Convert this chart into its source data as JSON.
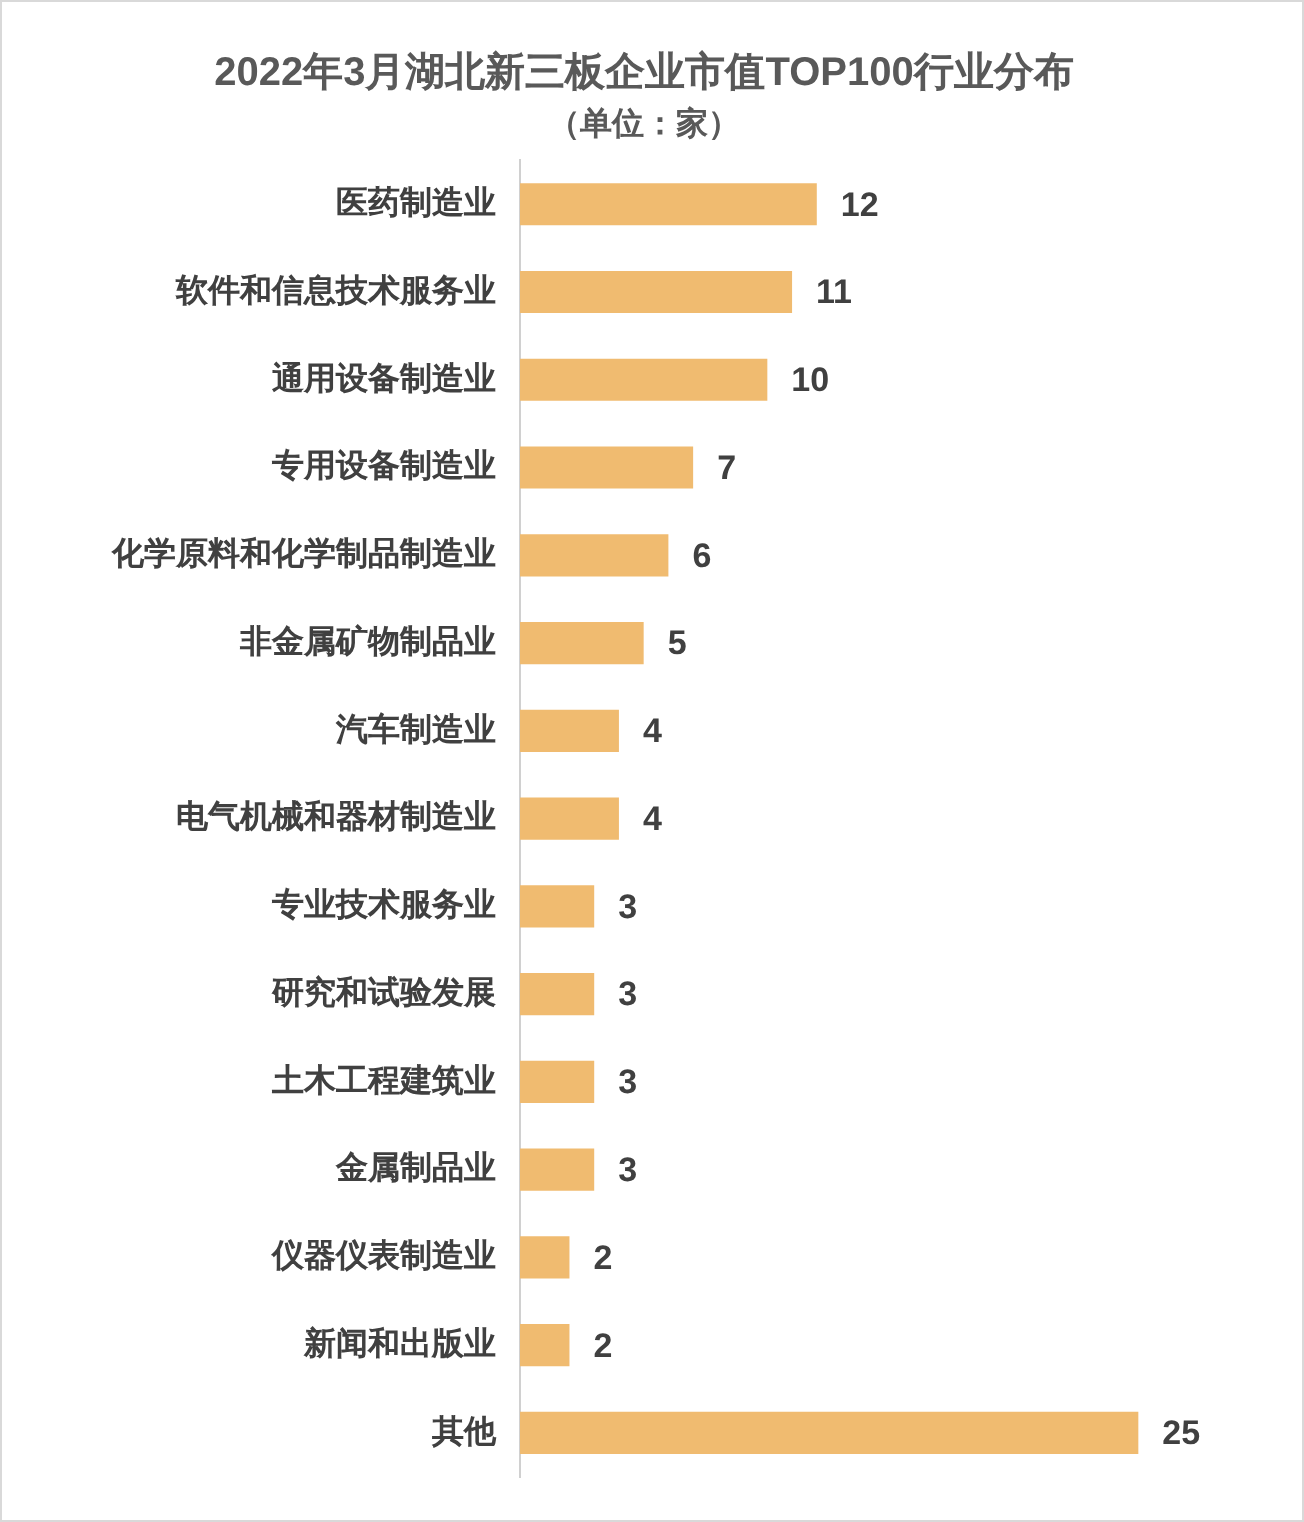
{
  "chart_data": {
    "type": "bar",
    "orientation": "horizontal",
    "title": "2022年3月湖北新三板企业市值TOP100行业分布",
    "subtitle": "（单位：家）",
    "categories": [
      "医药制造业",
      "软件和信息技术服务业",
      "通用设备制造业",
      "专用设备制造业",
      "化学原料和化学制品制造业",
      "非金属矿物制品业",
      "汽车制造业",
      "电气机械和器材制造业",
      "专业技术服务业",
      "研究和试验发展",
      "土木工程建筑业",
      "金属制品业",
      "仪器仪表制造业",
      "新闻和出版业",
      "其他"
    ],
    "values": [
      12,
      11,
      10,
      7,
      6,
      5,
      4,
      4,
      3,
      3,
      3,
      3,
      2,
      2,
      25
    ],
    "color": "#f0bb70",
    "data_labels": true
  }
}
